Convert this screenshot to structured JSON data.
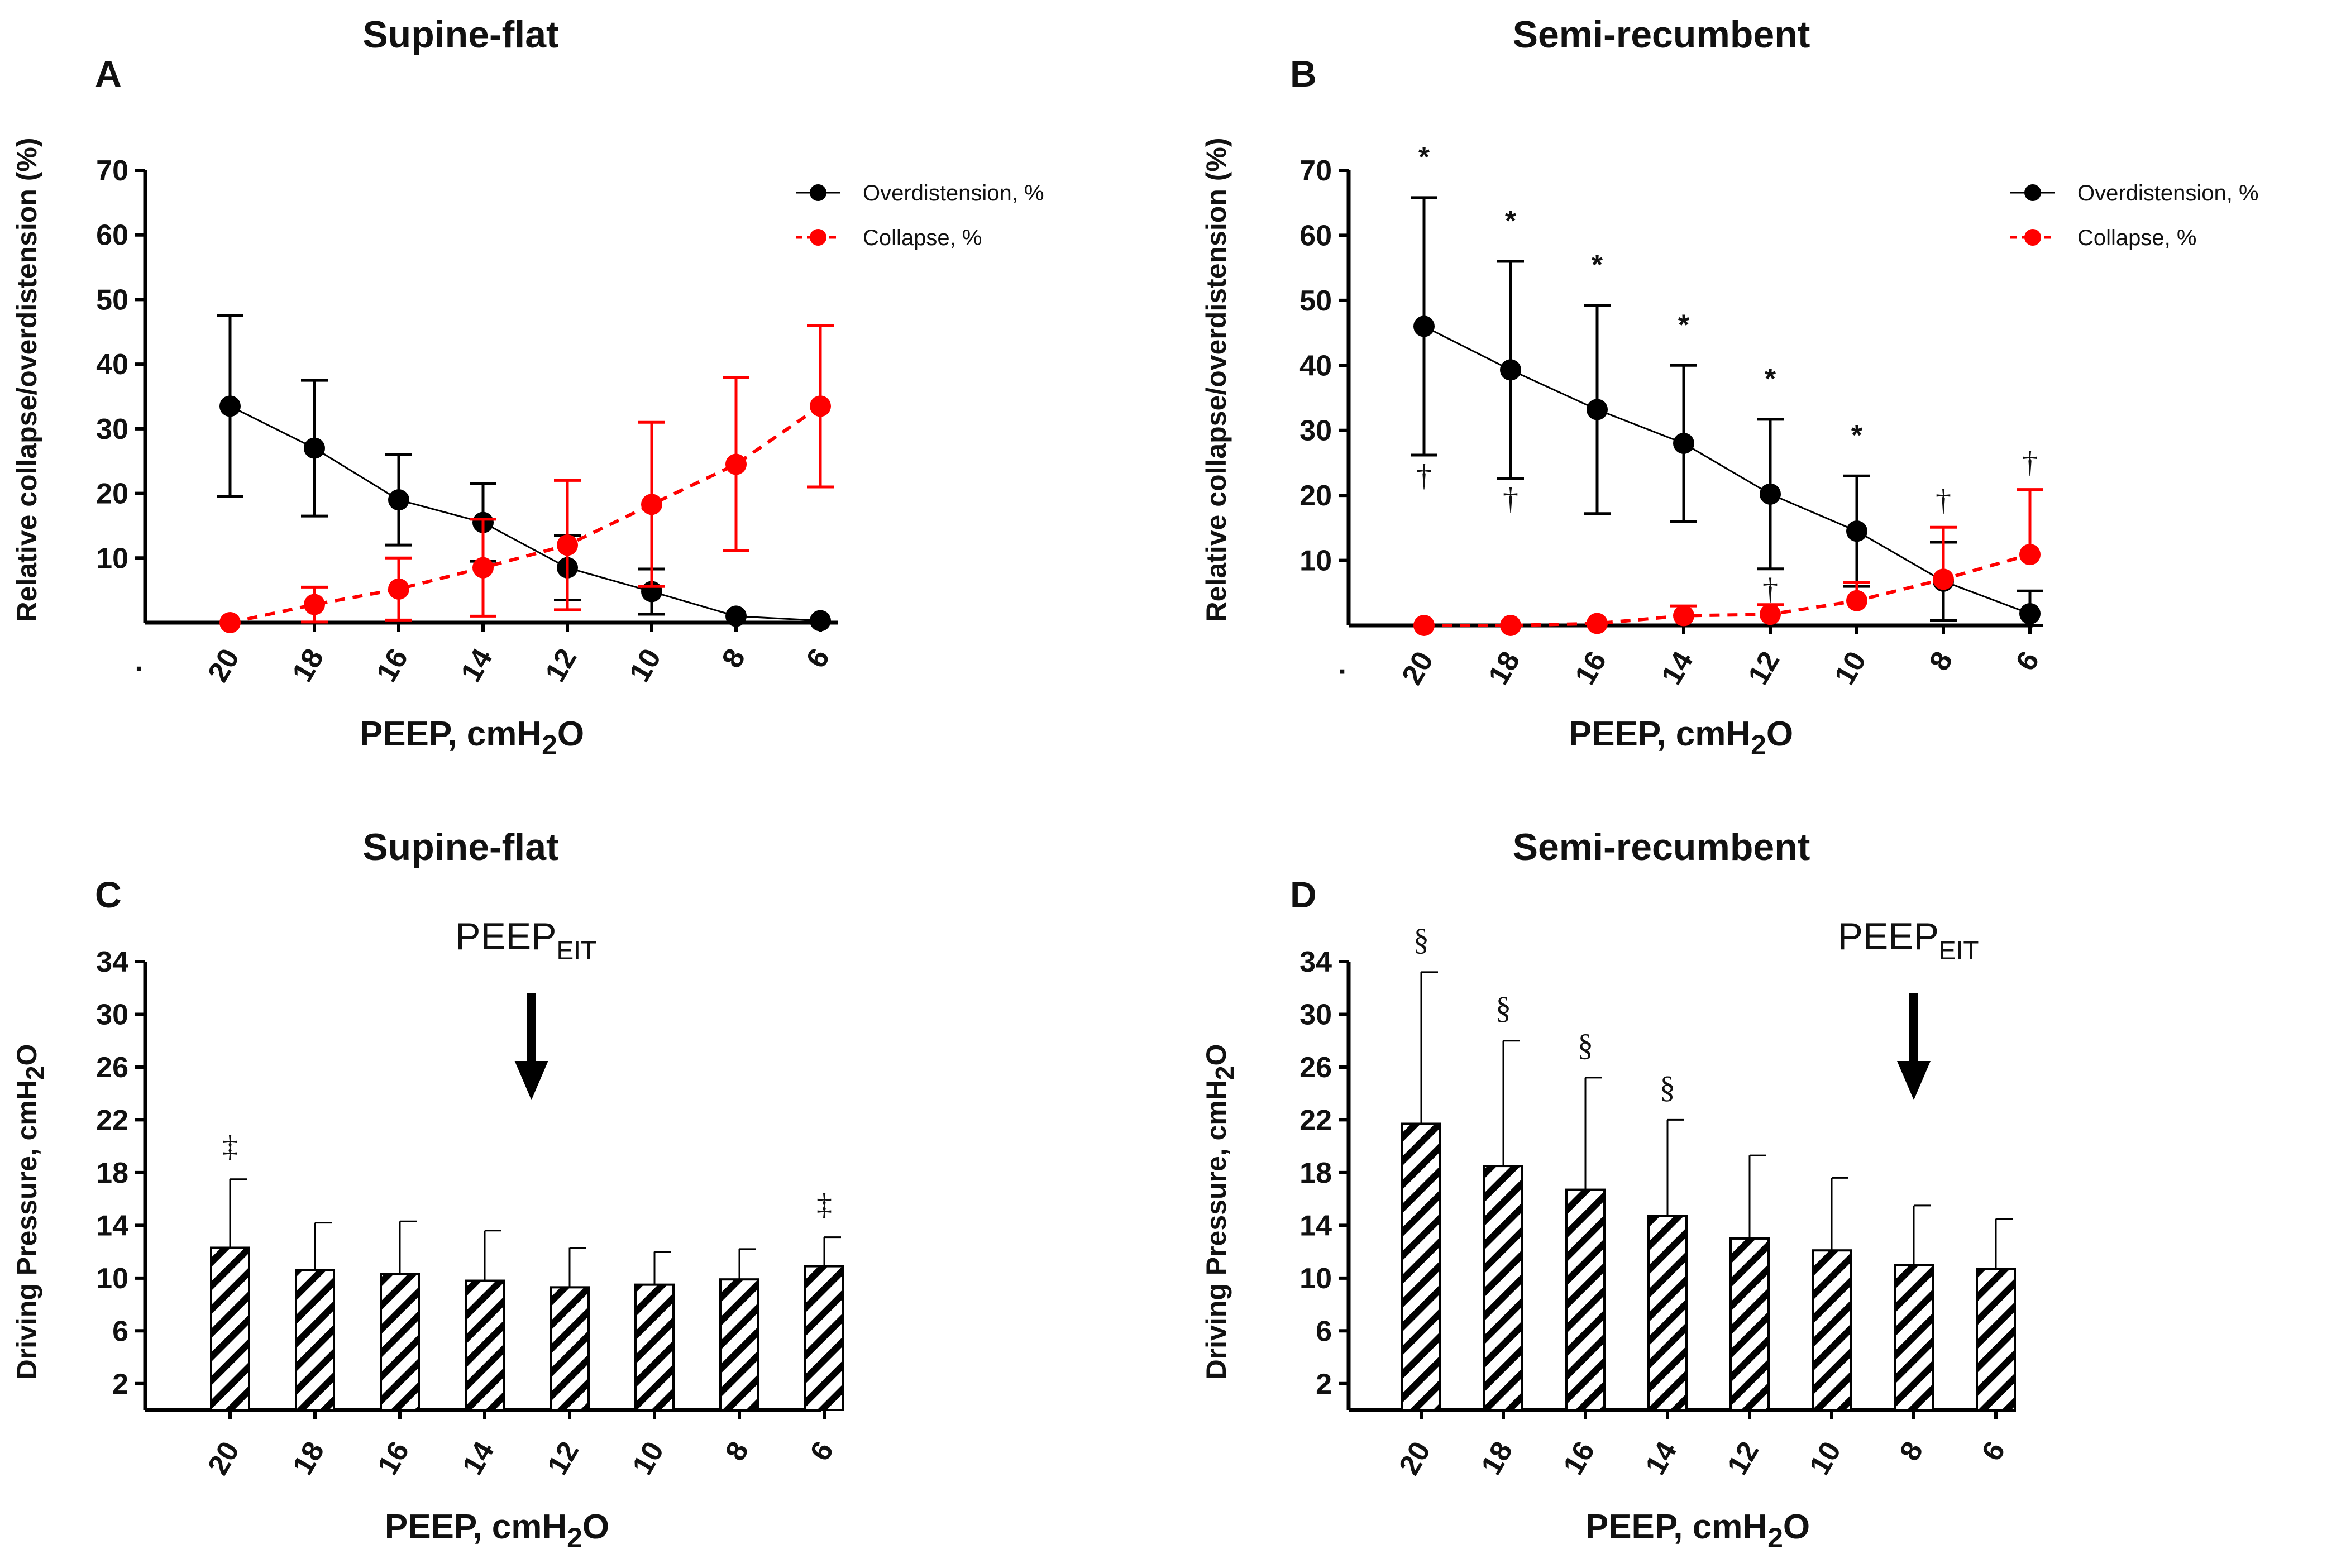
{
  "chart_data": [
    {
      "id": "A",
      "type": "line",
      "panel_letter": "A",
      "title": "Supine-flat",
      "xlabel": "PEEP, cmH",
      "xlabel_sub": "2",
      "xlabel_tail": "O",
      "ylabel": "Relative collapse/overdistension (%)",
      "categories": [
        "20",
        "18",
        "16",
        "14",
        "12",
        "10",
        "8",
        "6"
      ],
      "yticks": [
        10,
        20,
        30,
        40,
        50,
        60,
        70
      ],
      "ylim": [
        0,
        70
      ],
      "legend_position": "top-right",
      "series": [
        {
          "name": "Overdistension, %",
          "color": "#000000",
          "dashed": false,
          "values": [
            33.5,
            27,
            19,
            15.5,
            8.5,
            4.8,
            1,
            0.3
          ],
          "err_up": [
            14,
            10.5,
            7,
            6,
            5,
            3.5,
            0,
            0
          ],
          "err_down": [
            14,
            10.5,
            7,
            6,
            5,
            3.5,
            0,
            0
          ]
        },
        {
          "name": "Collapse, %",
          "color": "#ff0000",
          "dashed": true,
          "values": [
            0,
            2.8,
            5.2,
            8.5,
            12,
            18.3,
            24.5,
            33.5
          ],
          "err_up": [
            0,
            2.7,
            4.8,
            7.5,
            10,
            12.7,
            13.4,
            12.5
          ],
          "err_down": [
            0,
            2.7,
            4.8,
            7.5,
            10,
            12.7,
            13.4,
            12.5
          ]
        }
      ],
      "star_marks": [],
      "dagger_marks": []
    },
    {
      "id": "B",
      "type": "line",
      "panel_letter": "B",
      "title": "Semi-recumbent",
      "xlabel": "PEEP, cmH",
      "xlabel_sub": "2",
      "xlabel_tail": "O",
      "ylabel": "Relative collapse/overdistension (%)",
      "categories": [
        "20",
        "18",
        "16",
        "14",
        "12",
        "10",
        "8",
        "6"
      ],
      "yticks": [
        10,
        20,
        30,
        40,
        50,
        60,
        70
      ],
      "ylim": [
        0,
        70
      ],
      "legend_position": "top-right",
      "series": [
        {
          "name": "Overdistension, %",
          "color": "#000000",
          "dashed": false,
          "values": [
            46,
            39.3,
            33.2,
            28,
            20.2,
            14.5,
            6.8,
            1.8
          ],
          "err_up": [
            19.8,
            16.7,
            16,
            12,
            11.5,
            8.5,
            6,
            3.5
          ],
          "err_down": [
            19.8,
            16.7,
            16,
            12,
            11.5,
            8.5,
            6,
            3.5
          ]
        },
        {
          "name": "Collapse, %",
          "color": "#ff0000",
          "dashed": true,
          "values": [
            0,
            0,
            0.3,
            1.5,
            1.7,
            3.8,
            7.1,
            10.9
          ],
          "err_up": [
            0,
            0,
            0,
            1.5,
            1.5,
            2.8,
            8,
            10
          ],
          "err_down": [
            0,
            0,
            0,
            0,
            0,
            0,
            0,
            0
          ]
        }
      ],
      "star_marks": [
        {
          "category": "20",
          "label": "*"
        },
        {
          "category": "18",
          "label": "*"
        },
        {
          "category": "16",
          "label": "*"
        },
        {
          "category": "14",
          "label": "*"
        },
        {
          "category": "12",
          "label": "*"
        },
        {
          "category": "10",
          "label": "*"
        }
      ],
      "dagger_marks": [
        {
          "category": "20",
          "label": "†",
          "where": "below"
        },
        {
          "category": "18",
          "label": "†",
          "where": "below"
        },
        {
          "category": "12",
          "label": "†",
          "where": "below"
        },
        {
          "category": "8",
          "label": "†",
          "where": "above"
        },
        {
          "category": "6",
          "label": "†",
          "where": "above"
        }
      ]
    },
    {
      "id": "C",
      "type": "bar",
      "panel_letter": "C",
      "title": "Supine-flat",
      "xlabel": "PEEP, cmH",
      "xlabel_sub": "2",
      "xlabel_tail": "O",
      "ylabel": "Driving Pressure, cmH",
      "ylabel_sub": "2",
      "ylabel_tail": "O",
      "categories": [
        "20",
        "18",
        "16",
        "14",
        "12",
        "10",
        "8",
        "6"
      ],
      "yticks": [
        2,
        6,
        10,
        14,
        18,
        22,
        26,
        30,
        34
      ],
      "ylim": [
        0,
        34
      ],
      "values": [
        12.3,
        10.6,
        10.3,
        9.8,
        9.3,
        9.5,
        9.9,
        10.9
      ],
      "err_up": [
        5.2,
        3.6,
        4,
        3.8,
        3,
        2.5,
        2.3,
        2.2
      ],
      "marks": [
        {
          "category": "20",
          "label": "‡"
        },
        {
          "category": "6",
          "label": "‡"
        }
      ],
      "annotation": {
        "text": "PEEP",
        "sub": "EIT",
        "category": "14"
      }
    },
    {
      "id": "D",
      "type": "bar",
      "panel_letter": "D",
      "title": "Semi-recumbent",
      "xlabel": "PEEP, cmH",
      "xlabel_sub": "2",
      "xlabel_tail": "O",
      "ylabel": "Driving Pressure, cmH",
      "ylabel_sub": "2",
      "ylabel_tail": "O",
      "categories": [
        "20",
        "18",
        "16",
        "14",
        "12",
        "10",
        "8",
        "6"
      ],
      "yticks": [
        2,
        6,
        10,
        14,
        18,
        22,
        26,
        30,
        34
      ],
      "ylim": [
        0,
        34
      ],
      "values": [
        21.7,
        18.5,
        16.7,
        14.7,
        13,
        12.1,
        11,
        10.7
      ],
      "err_up": [
        11.5,
        9.5,
        8.5,
        7.3,
        6.3,
        5.5,
        4.5,
        3.8
      ],
      "marks": [
        {
          "category": "20",
          "label": "§"
        },
        {
          "category": "18",
          "label": "§"
        },
        {
          "category": "16",
          "label": "§"
        },
        {
          "category": "14",
          "label": "§"
        }
      ],
      "annotation": {
        "text": "PEEP",
        "sub": "EIT",
        "category": "8"
      }
    }
  ]
}
